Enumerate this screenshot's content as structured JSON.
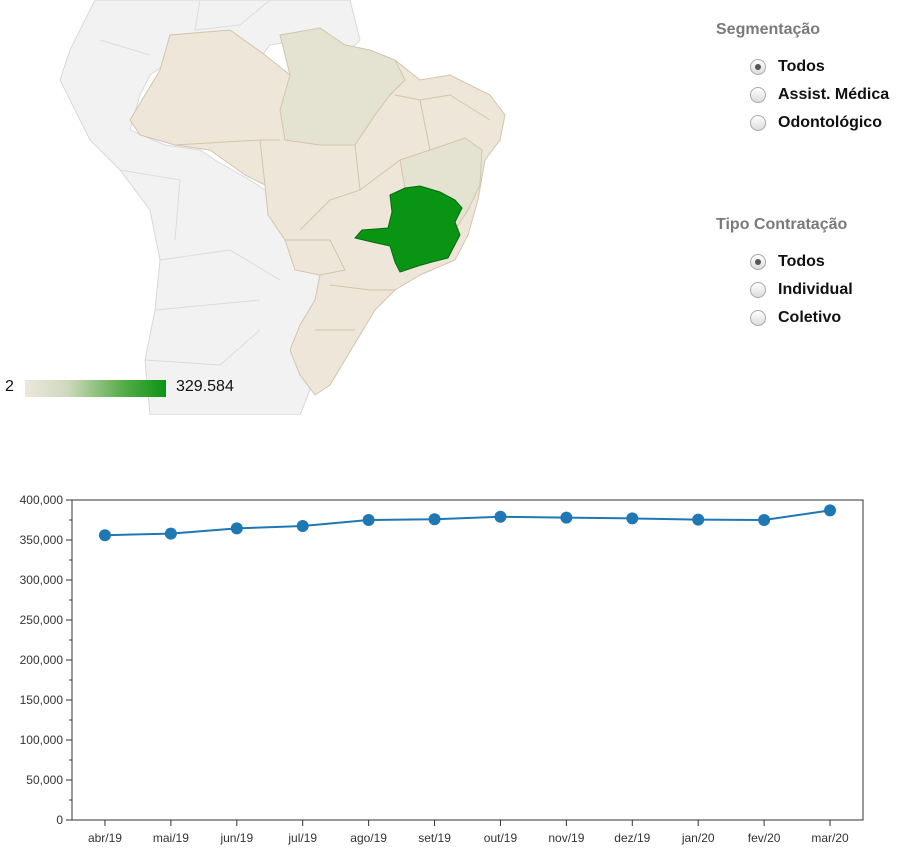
{
  "map": {
    "highlight_color": "#0a9414",
    "base_state_color": "#efe6da",
    "gray_region_color": "#f2f2f2",
    "legend": {
      "min": "2",
      "max": "329.584"
    }
  },
  "segmentacao": {
    "title": "Segmentação",
    "options": [
      {
        "label": "Todos",
        "selected": true
      },
      {
        "label": "Assist. Médica",
        "selected": false
      },
      {
        "label": "Odontológico",
        "selected": false
      }
    ]
  },
  "tipo_contratacao": {
    "title": "Tipo Contratação",
    "options": [
      {
        "label": "Todos",
        "selected": true
      },
      {
        "label": "Individual",
        "selected": false
      },
      {
        "label": "Coletivo",
        "selected": false
      }
    ]
  },
  "chart_data": {
    "type": "line",
    "categories": [
      "abr/19",
      "mai/19",
      "jun/19",
      "jul/19",
      "ago/19",
      "set/19",
      "out/19",
      "nov/19",
      "dez/19",
      "jan/20",
      "fev/20",
      "mar/20"
    ],
    "series": [
      {
        "values": [
          356000,
          358000,
          364500,
          367500,
          375000,
          376000,
          379000,
          378000,
          377000,
          375500,
          375000,
          387000
        ],
        "color": "#1f77b4"
      }
    ],
    "ylim": [
      0,
      400000
    ],
    "yticks": [
      "0",
      "50,000",
      "100,000",
      "150,000",
      "200,000",
      "250,000",
      "300,000",
      "350,000",
      "400,000"
    ],
    "title": "",
    "xlabel": "",
    "ylabel": ""
  }
}
